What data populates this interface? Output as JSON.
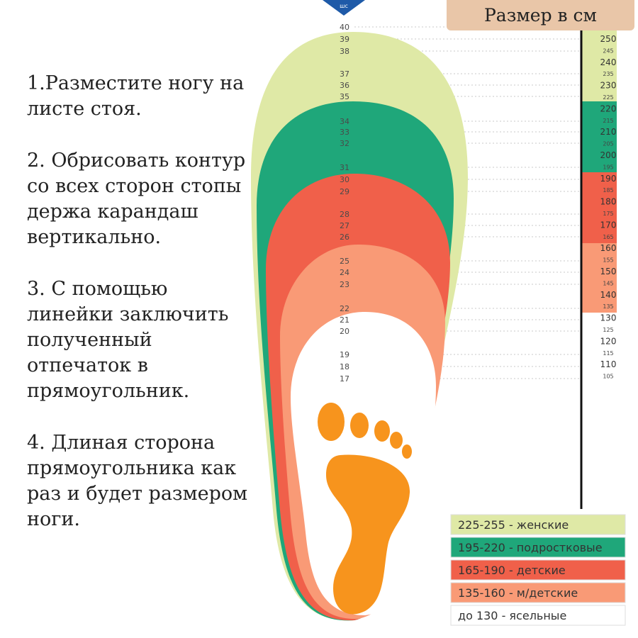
{
  "header": {
    "title": "Размер в см",
    "logo_text": "шс"
  },
  "instructions": {
    "steps": [
      {
        "lines": [
          "1.Разместите ногу на",
          "листе стоя."
        ]
      },
      {
        "lines": [
          "2. Обрисовать контур",
          "со всех сторон стопы",
          "держа карандаш",
          "вертикально."
        ]
      },
      {
        "lines": [
          "3. С помощью",
          "линейки заключить",
          "полученный",
          "отпечаток в",
          "прямоугольник."
        ]
      },
      {
        "lines": [
          "4. Длиная сторона",
          "прямоугольника как",
          "раз и будет размером",
          "ноги."
        ]
      }
    ]
  },
  "shoe_sizes": [
    "40",
    "39",
    "38",
    "37",
    "36",
    "35",
    "34",
    "33",
    "32",
    "31",
    "30",
    "29",
    "28",
    "27",
    "26",
    "25",
    "24",
    "23",
    "22",
    "21",
    "20",
    "19",
    "18",
    "17"
  ],
  "cm_scale": [
    {
      "label": "250",
      "major": true
    },
    {
      "label": "245",
      "major": false
    },
    {
      "label": "240",
      "major": true
    },
    {
      "label": "235",
      "major": false
    },
    {
      "label": "230",
      "major": true
    },
    {
      "label": "225",
      "major": false
    },
    {
      "label": "220",
      "major": true
    },
    {
      "label": "215",
      "major": false
    },
    {
      "label": "210",
      "major": true
    },
    {
      "label": "205",
      "major": false
    },
    {
      "label": "200",
      "major": true
    },
    {
      "label": "195",
      "major": false
    },
    {
      "label": "190",
      "major": true
    },
    {
      "label": "185",
      "major": false
    },
    {
      "label": "180",
      "major": true
    },
    {
      "label": "175",
      "major": false
    },
    {
      "label": "170",
      "major": true
    },
    {
      "label": "165",
      "major": false
    },
    {
      "label": "160",
      "major": true
    },
    {
      "label": "155",
      "major": false
    },
    {
      "label": "150",
      "major": true
    },
    {
      "label": "145",
      "major": false
    },
    {
      "label": "140",
      "major": true
    },
    {
      "label": "135",
      "major": false
    },
    {
      "label": "130",
      "major": true
    },
    {
      "label": "125",
      "major": false
    },
    {
      "label": "120",
      "major": true
    },
    {
      "label": "115",
      "major": false
    },
    {
      "label": "110",
      "major": true
    },
    {
      "label": "105",
      "major": false
    }
  ],
  "legend": [
    {
      "text": "225-255 - женские",
      "color": "#dfe9a6"
    },
    {
      "text": "195-220 - подростковые",
      "color": "#1fa77a"
    },
    {
      "text": "165-190 - детские",
      "color": "#f0604a"
    },
    {
      "text": "135-160 - м/детские",
      "color": "#f99a76"
    },
    {
      "text": "до 130 - ясельные",
      "color": "#ffffff"
    }
  ],
  "colors": {
    "women": "#dfe9a6",
    "teen": "#1fa77a",
    "kids": "#f0604a",
    "small_kids": "#f99a76",
    "nursery": "#ffffff",
    "foot": "#f7941d",
    "logo": "#1e5aa8",
    "header_bg": "#e9c6a8"
  }
}
